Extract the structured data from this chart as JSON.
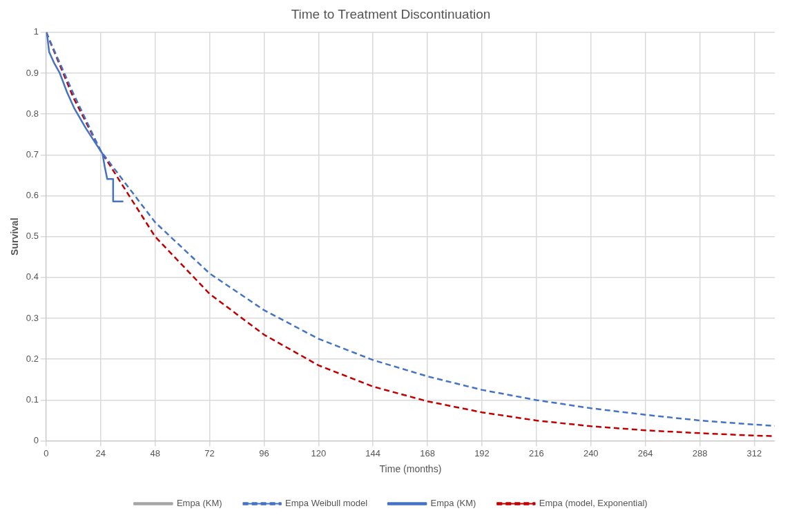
{
  "chart_data": {
    "type": "line",
    "title": "Time to Treatment Discontinuation",
    "xlabel": "Time (months)",
    "ylabel": "Survival",
    "xlim": [
      0,
      321
    ],
    "xticks": [
      0,
      24,
      48,
      72,
      96,
      120,
      144,
      168,
      192,
      216,
      240,
      264,
      288,
      312
    ],
    "ylim": [
      0,
      1
    ],
    "yticks": [
      0,
      0.1,
      0.2,
      0.3,
      0.4,
      0.5,
      0.6,
      0.7,
      0.8,
      0.9,
      1
    ],
    "grid": true,
    "legend": "bottom",
    "marker": "none",
    "series": [
      {
        "name": "Empa (KM)",
        "color": "#a5a5a5",
        "line_style": "solid"
      },
      {
        "name": "Empa Weibull model",
        "color": "#4472c4",
        "line_style": "dashed",
        "x": [
          0,
          12,
          24,
          48,
          72,
          96,
          120,
          144,
          168,
          192,
          216,
          240,
          264,
          288,
          312,
          321
        ],
        "values": [
          1,
          0.85,
          0.71,
          0.535,
          0.41,
          0.32,
          0.25,
          0.198,
          0.158,
          0.125,
          0.1,
          0.08,
          0.064,
          0.05,
          0.04,
          0.037
        ]
      },
      {
        "name": "Empa (KM)",
        "color": "#4472c4",
        "line_style": "solid",
        "x": [
          0,
          0.3,
          1.3,
          3.4,
          6,
          9.2,
          12.3,
          17.5,
          21.7,
          24.8,
          25.8,
          26.9,
          29.5,
          29.5,
          34
        ],
        "values": [
          1,
          1,
          0.952,
          0.926,
          0.9,
          0.853,
          0.815,
          0.765,
          0.729,
          0.703,
          0.671,
          0.641,
          0.641,
          0.586,
          0.586
        ]
      },
      {
        "name": "Empa (model, Exponential)",
        "color": "#c00000",
        "line_style": "dashed",
        "x": [
          0,
          12,
          24,
          48,
          72,
          96,
          120,
          144,
          168,
          192,
          216,
          240,
          264,
          288,
          312,
          321
        ],
        "values": [
          1,
          0.84,
          0.71,
          0.5,
          0.36,
          0.26,
          0.185,
          0.133,
          0.097,
          0.07,
          0.05,
          0.036,
          0.026,
          0.019,
          0.013,
          0.012
        ]
      }
    ]
  }
}
